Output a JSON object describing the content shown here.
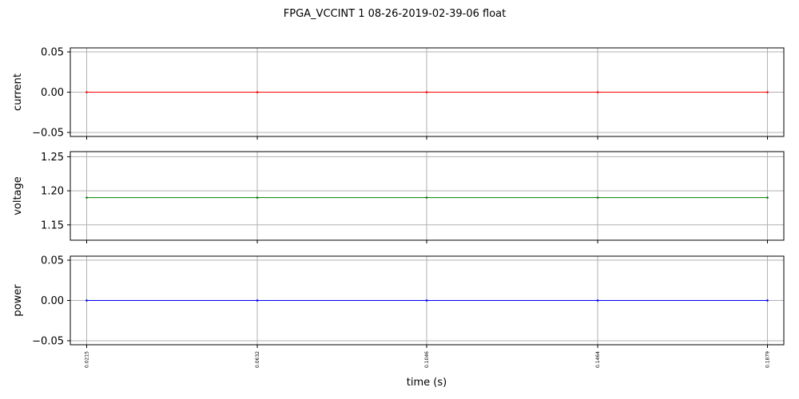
{
  "chart_data": {
    "title": "FPGA_VCCINT   1   08-26-2019-02-39-06   float",
    "type": "line",
    "shared_x": {
      "label": "time (s)",
      "values": [
        0.0215,
        0.0632,
        0.1046,
        0.1464,
        0.1879
      ],
      "tick_labels": [
        "0.0215",
        "0.0632",
        "0.1046",
        "0.1464",
        "0.1879"
      ],
      "lim": [
        0.0175,
        0.1919
      ]
    },
    "grid": true,
    "subplots": [
      {
        "ylabel": "current",
        "color": "#ff0000",
        "values": [
          0.0,
          0.0,
          0.0,
          0.0,
          0.0
        ],
        "ylim": [
          -0.055,
          0.055
        ],
        "yticks": [
          -0.05,
          0.0,
          0.05
        ],
        "ytick_labels": [
          "−0.05",
          "0.00",
          "0.05"
        ]
      },
      {
        "ylabel": "voltage",
        "color": "#008000",
        "values": [
          1.19,
          1.19,
          1.19,
          1.19,
          1.19
        ],
        "ylim": [
          1.1275,
          1.2575
        ],
        "yticks": [
          1.15,
          1.2,
          1.25
        ],
        "ytick_labels": [
          "1.15",
          "1.20",
          "1.25"
        ]
      },
      {
        "ylabel": "power",
        "color": "#0000ff",
        "values": [
          0.0,
          0.0,
          0.0,
          0.0,
          0.0
        ],
        "ylim": [
          -0.055,
          0.055
        ],
        "yticks": [
          -0.05,
          0.0,
          0.05
        ],
        "ytick_labels": [
          "−0.05",
          "0.00",
          "0.05"
        ]
      }
    ]
  }
}
